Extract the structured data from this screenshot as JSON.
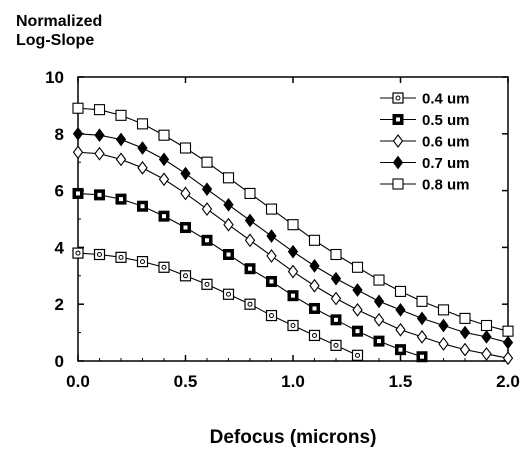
{
  "chart_data": {
    "type": "line",
    "title": "",
    "ylabel_lines": [
      "Normalized",
      "Log-Slope"
    ],
    "xlabel": "Defocus (microns)",
    "xlim": [
      0.0,
      2.0
    ],
    "ylim": [
      0,
      10
    ],
    "x_ticks": [
      "0.0",
      "0.5",
      "1.0",
      "1.5",
      "2.0"
    ],
    "y_ticks": [
      "0",
      "2",
      "4",
      "6",
      "8",
      "10"
    ],
    "legend_position": "top-right",
    "grid": false,
    "series": [
      {
        "name": "0.4 um",
        "marker": "dotted-square",
        "x": [
          0.0,
          0.1,
          0.2,
          0.3,
          0.4,
          0.5,
          0.6,
          0.7,
          0.8,
          0.9,
          1.0,
          1.1,
          1.2,
          1.3
        ],
        "y": [
          3.8,
          3.75,
          3.65,
          3.5,
          3.3,
          3.0,
          2.7,
          2.35,
          2.0,
          1.6,
          1.25,
          0.9,
          0.55,
          0.2
        ]
      },
      {
        "name": "0.5 um",
        "marker": "bold-square",
        "x": [
          0.0,
          0.1,
          0.2,
          0.3,
          0.4,
          0.5,
          0.6,
          0.7,
          0.8,
          0.9,
          1.0,
          1.1,
          1.2,
          1.3,
          1.4,
          1.5,
          1.6
        ],
        "y": [
          5.9,
          5.85,
          5.7,
          5.45,
          5.1,
          4.7,
          4.25,
          3.75,
          3.25,
          2.8,
          2.3,
          1.85,
          1.45,
          1.05,
          0.7,
          0.4,
          0.15
        ]
      },
      {
        "name": "0.6 um",
        "marker": "open-diamond",
        "x": [
          0.0,
          0.1,
          0.2,
          0.3,
          0.4,
          0.5,
          0.6,
          0.7,
          0.8,
          0.9,
          1.0,
          1.1,
          1.2,
          1.3,
          1.4,
          1.5,
          1.6,
          1.7,
          1.8,
          1.9,
          2.0
        ],
        "y": [
          7.35,
          7.3,
          7.1,
          6.8,
          6.4,
          5.9,
          5.35,
          4.8,
          4.25,
          3.7,
          3.15,
          2.65,
          2.2,
          1.8,
          1.45,
          1.1,
          0.85,
          0.6,
          0.4,
          0.25,
          0.1
        ]
      },
      {
        "name": "0.7 um",
        "marker": "filled-diamond",
        "x": [
          0.0,
          0.1,
          0.2,
          0.3,
          0.4,
          0.5,
          0.6,
          0.7,
          0.8,
          0.9,
          1.0,
          1.1,
          1.2,
          1.3,
          1.4,
          1.5,
          1.6,
          1.7,
          1.8,
          1.9,
          2.0
        ],
        "y": [
          8.0,
          7.95,
          7.8,
          7.5,
          7.1,
          6.6,
          6.05,
          5.5,
          4.95,
          4.4,
          3.85,
          3.35,
          2.9,
          2.5,
          2.1,
          1.8,
          1.5,
          1.25,
          1.0,
          0.85,
          0.65
        ]
      },
      {
        "name": "0.8 um",
        "marker": "open-square",
        "x": [
          0.0,
          0.1,
          0.2,
          0.3,
          0.4,
          0.5,
          0.6,
          0.7,
          0.8,
          0.9,
          1.0,
          1.1,
          1.2,
          1.3,
          1.4,
          1.5,
          1.6,
          1.7,
          1.8,
          1.9,
          2.0
        ],
        "y": [
          8.9,
          8.85,
          8.65,
          8.35,
          7.95,
          7.5,
          7.0,
          6.45,
          5.9,
          5.35,
          4.8,
          4.25,
          3.75,
          3.3,
          2.85,
          2.45,
          2.1,
          1.8,
          1.5,
          1.25,
          1.05
        ]
      }
    ]
  }
}
